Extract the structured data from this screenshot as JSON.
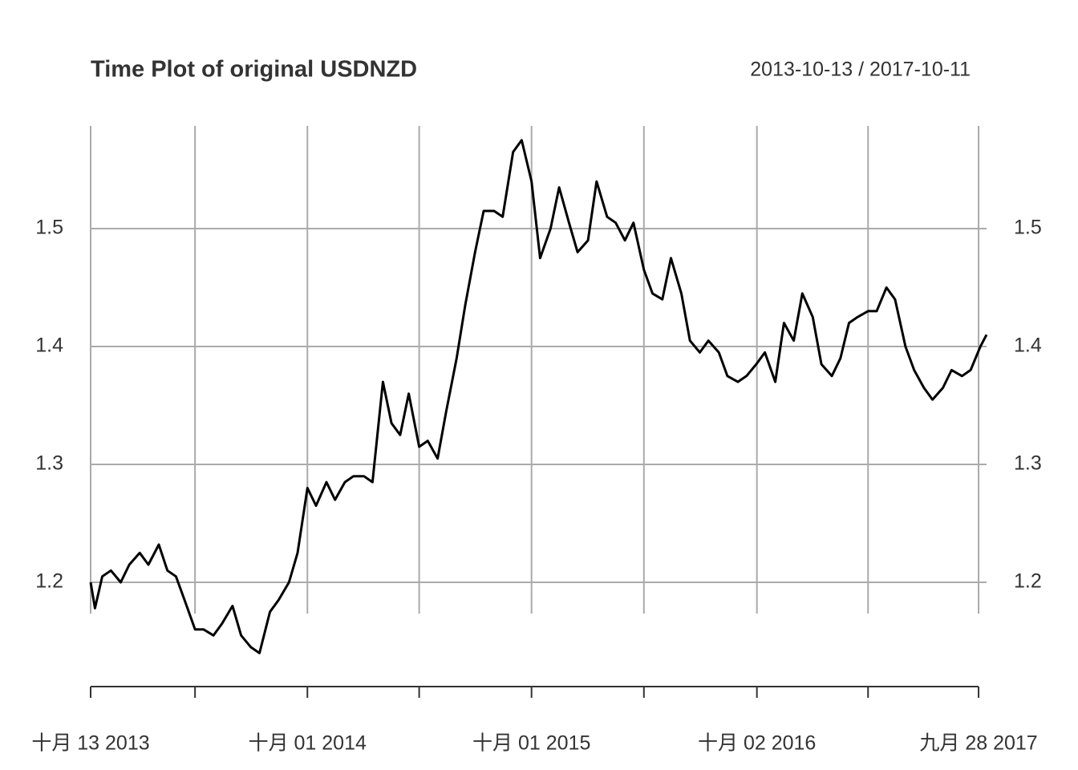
{
  "chart_data": {
    "type": "line",
    "title": "Time Plot of original USDNZD",
    "subtitle": "2013-10-13 / 2017-10-11",
    "x": [
      "2013-10-13",
      "2013-10-20",
      "2013-11-01",
      "2013-11-15",
      "2013-12-01",
      "2013-12-15",
      "2014-01-01",
      "2014-01-15",
      "2014-02-01",
      "2014-02-15",
      "2014-03-01",
      "2014-03-15",
      "2014-04-01",
      "2014-04-15",
      "2014-05-01",
      "2014-05-15",
      "2014-06-01",
      "2014-06-15",
      "2014-07-01",
      "2014-07-15",
      "2014-08-01",
      "2014-08-15",
      "2014-09-01",
      "2014-09-15",
      "2014-10-01",
      "2014-10-15",
      "2014-11-01",
      "2014-11-15",
      "2014-12-01",
      "2014-12-15",
      "2015-01-01",
      "2015-01-15",
      "2015-02-01",
      "2015-02-15",
      "2015-03-01",
      "2015-03-15",
      "2015-04-01",
      "2015-04-15",
      "2015-05-01",
      "2015-05-15",
      "2015-06-01",
      "2015-06-15",
      "2015-07-01",
      "2015-07-15",
      "2015-08-01",
      "2015-08-15",
      "2015-09-01",
      "2015-09-15",
      "2015-10-01",
      "2015-10-15",
      "2015-11-01",
      "2015-11-15",
      "2015-12-01",
      "2015-12-15",
      "2016-01-01",
      "2016-01-15",
      "2016-02-01",
      "2016-02-15",
      "2016-03-01",
      "2016-03-15",
      "2016-04-01",
      "2016-04-15",
      "2016-05-01",
      "2016-05-15",
      "2016-06-01",
      "2016-06-15",
      "2016-07-01",
      "2016-07-15",
      "2016-08-01",
      "2016-08-15",
      "2016-09-01",
      "2016-09-15",
      "2016-10-01",
      "2016-10-15",
      "2016-11-01",
      "2016-11-15",
      "2016-12-01",
      "2016-12-15",
      "2017-01-01",
      "2017-01-15",
      "2017-02-01",
      "2017-02-15",
      "2017-03-01",
      "2017-03-15",
      "2017-04-01",
      "2017-04-15",
      "2017-05-01",
      "2017-05-15",
      "2017-06-01",
      "2017-06-15",
      "2017-07-01",
      "2017-07-15",
      "2017-08-01",
      "2017-08-15",
      "2017-09-01",
      "2017-09-15",
      "2017-10-01",
      "2017-10-11"
    ],
    "values": [
      1.2,
      1.178,
      1.205,
      1.21,
      1.2,
      1.215,
      1.225,
      1.215,
      1.232,
      1.21,
      1.205,
      1.185,
      1.16,
      1.16,
      1.155,
      1.165,
      1.18,
      1.155,
      1.145,
      1.14,
      1.175,
      1.185,
      1.2,
      1.225,
      1.28,
      1.265,
      1.285,
      1.27,
      1.285,
      1.29,
      1.29,
      1.285,
      1.37,
      1.335,
      1.325,
      1.36,
      1.315,
      1.32,
      1.305,
      1.345,
      1.39,
      1.435,
      1.48,
      1.515,
      1.515,
      1.51,
      1.565,
      1.575,
      1.54,
      1.475,
      1.5,
      1.535,
      1.505,
      1.48,
      1.49,
      1.54,
      1.51,
      1.505,
      1.49,
      1.505,
      1.465,
      1.445,
      1.44,
      1.475,
      1.445,
      1.405,
      1.395,
      1.405,
      1.395,
      1.375,
      1.37,
      1.375,
      1.385,
      1.395,
      1.37,
      1.42,
      1.405,
      1.445,
      1.425,
      1.385,
      1.375,
      1.39,
      1.42,
      1.425,
      1.43,
      1.43,
      1.45,
      1.44,
      1.4,
      1.38,
      1.365,
      1.355,
      1.365,
      1.38,
      1.375,
      1.38,
      1.4,
      1.41
    ],
    "color": "#000000",
    "xlim": [
      "2013-10-13",
      "2017-10-11"
    ],
    "xticks": [
      {
        "value": "2013-10-13",
        "label": "十月 13 2013"
      },
      {
        "value": "2014-04-01",
        "label": null
      },
      {
        "value": "2014-10-01",
        "label": "十月 01 2014"
      },
      {
        "value": "2015-04-01",
        "label": null
      },
      {
        "value": "2015-10-01",
        "label": "十月 01 2015"
      },
      {
        "value": "2016-04-01",
        "label": null
      },
      {
        "value": "2016-10-02",
        "label": "十月 02 2016"
      },
      {
        "value": "2017-04-01",
        "label": null
      },
      {
        "value": "2017-09-28",
        "label": "九月 28 2017"
      }
    ],
    "ylim": [
      1.12,
      1.6
    ],
    "yticks": [
      1.2,
      1.3,
      1.4,
      1.5
    ],
    "grid": true
  }
}
